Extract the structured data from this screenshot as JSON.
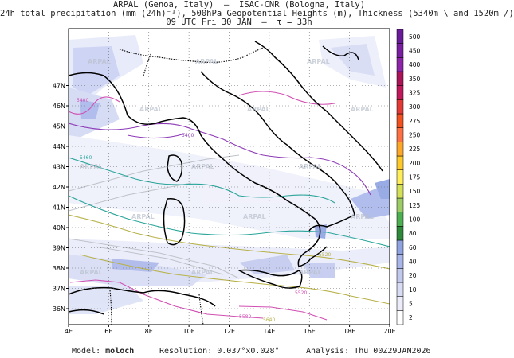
{
  "header": {
    "line1": "ARPAL (Genoa, Italy)  –  ISAC-CNR (Bologna, Italy)",
    "line2": "24h total precipitation (mm (24h)⁻¹), 500hPa Geopotential Heights (m), Thickness (5340m \\ and 1520m /)",
    "line3": "09 UTC Fri 30 JAN  –  τ = 33h"
  },
  "map": {
    "lon_labels": [
      "4E",
      "6E",
      "8E",
      "10E",
      "12E",
      "14E",
      "16E",
      "18E",
      "20E"
    ],
    "lat_labels": [
      "36N",
      "37N",
      "38N",
      "39N",
      "40N",
      "41N",
      "42N",
      "43N",
      "44N",
      "45N",
      "46N",
      "47N"
    ],
    "watermark": "ARPAL",
    "contour_labels": [
      "5400",
      "5520",
      "5400",
      "5460",
      "5520",
      "5580",
      "5640"
    ]
  },
  "colorbar": {
    "labels": [
      "2",
      "5",
      "10",
      "20",
      "40",
      "60",
      "80",
      "100",
      "125",
      "150",
      "175",
      "200",
      "225",
      "250",
      "275",
      "300",
      "325",
      "350",
      "400",
      "450",
      "500"
    ],
    "colors": [
      "#ffffff",
      "#ececfa",
      "#d9dcf5",
      "#c2c9ef",
      "#a9b6ea",
      "#8fa2e2",
      "#2d8a3a",
      "#4caf50",
      "#9ccc65",
      "#d4e157",
      "#ffee58",
      "#ffca28",
      "#ffa726",
      "#ff7043",
      "#f4511e",
      "#e53935",
      "#c2185b",
      "#ad1457",
      "#8e24aa",
      "#7b1fa2",
      "#6a1b9a"
    ]
  },
  "footer": {
    "model_label": "Model:",
    "model_value": "moloch",
    "resolution_label": "Resolution:",
    "resolution_value": "0.037°x0.028°",
    "analysis_label": "Analysis:",
    "analysis_value": "Thu 00Z29JAN2026"
  }
}
